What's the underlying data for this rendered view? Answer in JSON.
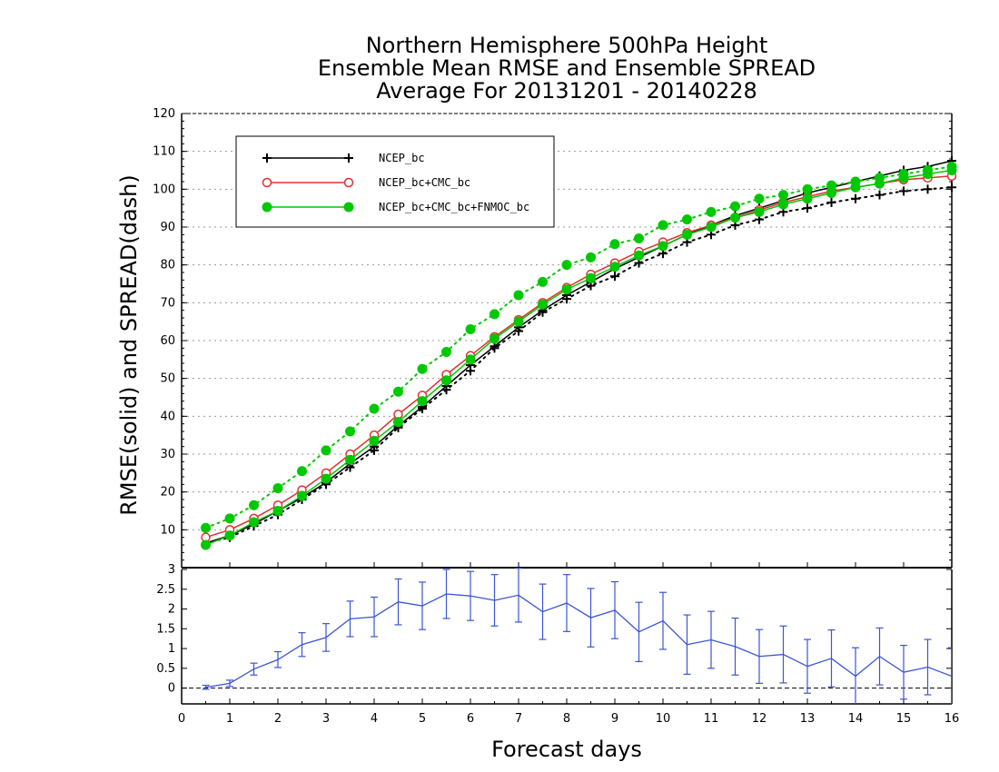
{
  "chart_data": {
    "type": "line",
    "title": [
      "Northern Hemisphere 500hPa Height",
      "Ensemble Mean RMSE and Ensemble SPREAD",
      "Average For 20131201 - 20140228"
    ],
    "xlabel": "Forecast days",
    "ylabel": "RMSE(solid) and SPREAD(dash)",
    "xlim": [
      0,
      16
    ],
    "ylim": [
      0,
      120
    ],
    "xticks": [
      "0",
      "1",
      "2",
      "3",
      "4",
      "5",
      "6",
      "7",
      "8",
      "9",
      "10",
      "11",
      "12",
      "13",
      "14",
      "15",
      "16"
    ],
    "yticks": [
      "10",
      "20",
      "30",
      "40",
      "50",
      "60",
      "70",
      "80",
      "90",
      "100",
      "110",
      "120"
    ],
    "grid": true,
    "legend_position": "top-left",
    "x": [
      0.5,
      1,
      1.5,
      2,
      2.5,
      3,
      3.5,
      4,
      4.5,
      5,
      5.5,
      6,
      6.5,
      7,
      7.5,
      8,
      8.5,
      9,
      9.5,
      10,
      10.5,
      11,
      11.5,
      12,
      12.5,
      13,
      13.5,
      14,
      14.5,
      15,
      15.5,
      16
    ],
    "series": [
      {
        "name": "NCEP_bc",
        "color": "#000000",
        "marker": "plus",
        "rmse": [
          6.5,
          8.5,
          11.5,
          15,
          18.5,
          22.5,
          27.5,
          32,
          37.5,
          42.5,
          48,
          53.5,
          58.5,
          63.5,
          68,
          72,
          75.5,
          79,
          82,
          85,
          88,
          90.5,
          93,
          95,
          97,
          99,
          100.5,
          102,
          103.5,
          105,
          106,
          107.5
        ],
        "spread": [
          6.5,
          8.0,
          11.0,
          14.0,
          18.0,
          22.0,
          26.5,
          31.0,
          37.0,
          42.0,
          47.0,
          52.0,
          58.0,
          62.5,
          67.5,
          71.0,
          74.5,
          77.0,
          80.5,
          83.0,
          86.0,
          88.0,
          90.5,
          92.0,
          94.0,
          95.0,
          96.5,
          97.5,
          98.5,
          99.5,
          100.0,
          100.5
        ]
      },
      {
        "name": "NCEP_bc+CMC_bc",
        "color": "#e03030",
        "marker": "open-circle",
        "rmse": [
          8,
          10,
          13,
          16.5,
          20.5,
          25,
          30,
          35,
          40.5,
          45.5,
          51,
          56,
          61,
          65.5,
          70,
          74,
          77.5,
          80.5,
          83.5,
          86,
          88.5,
          90.5,
          92.5,
          94.5,
          96.5,
          98,
          99.5,
          100.5,
          101.5,
          102.5,
          103,
          103.5
        ],
        "spread": []
      },
      {
        "name": "NCEP_bc+CMC_bc+FNMOC_bc",
        "color": "#00c800",
        "marker": "filled-circle",
        "rmse": [
          6,
          8.5,
          12,
          15,
          19,
          23.5,
          28.5,
          33.5,
          38.5,
          44,
          49.5,
          55,
          60.5,
          65,
          69.5,
          73.5,
          76.5,
          79.5,
          82.5,
          85,
          88,
          90,
          92.5,
          94,
          96,
          97.5,
          99,
          100.5,
          101.5,
          103,
          104,
          105
        ],
        "spread": [
          10.5,
          13,
          16.5,
          21,
          25.5,
          31,
          36,
          42,
          46.5,
          52.5,
          57,
          63,
          67,
          72,
          75.5,
          80,
          82,
          85.5,
          87,
          90.5,
          92,
          94,
          95.5,
          97.5,
          98.5,
          100,
          101,
          102,
          103,
          104,
          105,
          106
        ]
      }
    ],
    "difference_panel": {
      "ylim": [
        -0.4,
        3
      ],
      "yticks": [
        "0",
        "0.5",
        "1",
        "1.5",
        "2",
        "2.5",
        "3"
      ],
      "color": "#3a55d6",
      "x": [
        0.5,
        1,
        1.5,
        2,
        2.5,
        3,
        3.5,
        4,
        4.5,
        5,
        5.5,
        6,
        6.5,
        7,
        7.5,
        8,
        8.5,
        9,
        9.5,
        10,
        10.5,
        11,
        11.5,
        12,
        12.5,
        13,
        13.5,
        14,
        14.5,
        15,
        15.5,
        16
      ],
      "values": [
        0.02,
        0.12,
        0.48,
        0.72,
        1.1,
        1.28,
        1.75,
        1.8,
        2.18,
        2.08,
        2.38,
        2.33,
        2.22,
        2.35,
        1.93,
        2.15,
        1.78,
        1.97,
        1.42,
        1.7,
        1.1,
        1.22,
        1.05,
        0.8,
        0.85,
        0.55,
        0.75,
        0.3,
        0.8,
        0.4,
        0.53,
        0.3
      ],
      "errors": [
        0.05,
        0.08,
        0.15,
        0.2,
        0.3,
        0.35,
        0.45,
        0.5,
        0.58,
        0.6,
        0.62,
        0.62,
        0.65,
        0.68,
        0.7,
        0.72,
        0.74,
        0.72,
        0.75,
        0.72,
        0.75,
        0.72,
        0.72,
        0.68,
        0.72,
        0.68,
        0.72,
        0.72,
        0.72,
        0.68,
        0.7,
        0.72
      ]
    }
  }
}
